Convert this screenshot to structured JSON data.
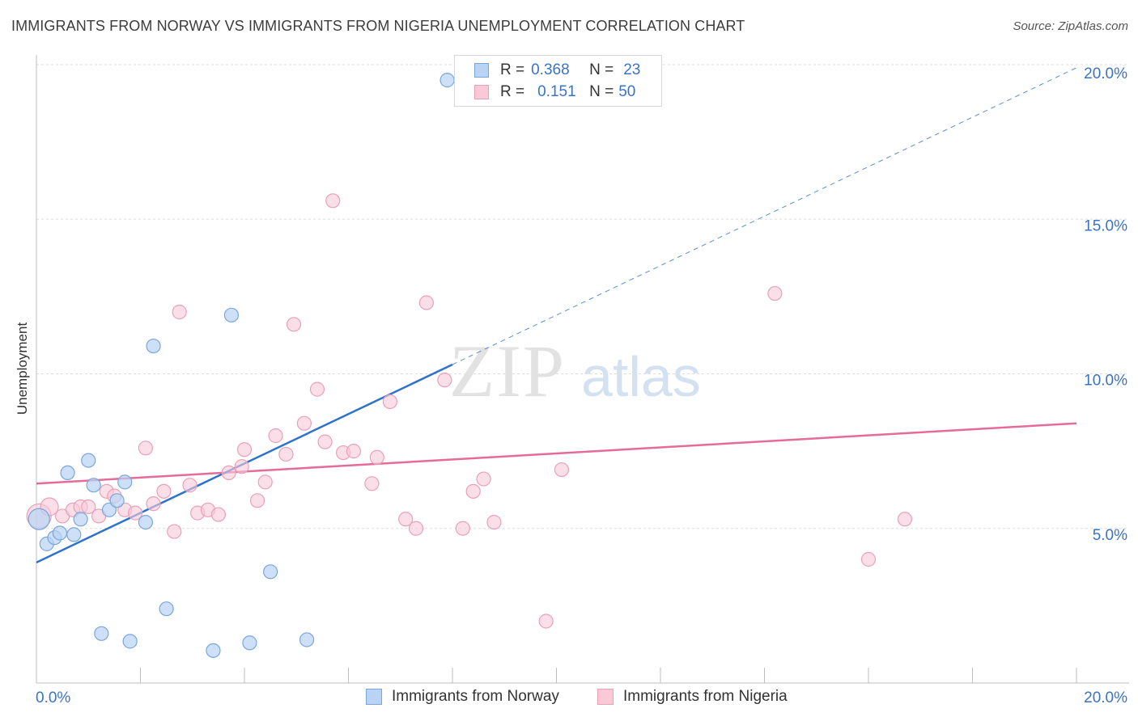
{
  "header": {
    "title": "IMMIGRANTS FROM NORWAY VS IMMIGRANTS FROM NIGERIA UNEMPLOYMENT CORRELATION CHART",
    "source": "Source: ZipAtlas.com"
  },
  "legend": {
    "norway": {
      "r_label": "R =",
      "r_value": "0.368",
      "n_label": "N =",
      "n_value": "23"
    },
    "nigeria": {
      "r_label": "R =",
      "r_value": "0.151",
      "n_label": "N =",
      "n_value": "50"
    }
  },
  "watermark": {
    "zip": "ZIP",
    "atlas": "atlas"
  },
  "colors": {
    "norway_fill": "#b8d3f4",
    "norway_stroke": "#7aa6de",
    "norway_line": "#2f72cc",
    "nigeria_fill": "#f9c9d8",
    "nigeria_stroke": "#eba0b8",
    "nigeria_line": "#e56b98",
    "axis_text": "#3b73c4",
    "grid": "#dddddd"
  },
  "chart_data": {
    "type": "scatter",
    "title": "IMMIGRANTS FROM NORWAY VS IMMIGRANTS FROM NIGERIA UNEMPLOYMENT CORRELATION CHART",
    "xlabel": "",
    "ylabel": "Unemployment",
    "xlim": [
      0,
      20
    ],
    "ylim": [
      0,
      20
    ],
    "x_tick_labels": [
      "0.0%",
      "20.0%"
    ],
    "y_ticks": [
      5,
      10,
      15,
      20
    ],
    "y_tick_labels": [
      "5.0%",
      "10.0%",
      "15.0%",
      "20.0%"
    ],
    "grid": true,
    "legend_position": "top-center",
    "series": [
      {
        "name": "Immigrants from Norway",
        "r": 0.368,
        "n": 23,
        "points": [
          [
            0.05,
            5.3
          ],
          [
            0.2,
            4.5
          ],
          [
            0.35,
            4.7
          ],
          [
            0.45,
            4.85
          ],
          [
            0.6,
            6.8
          ],
          [
            0.72,
            4.8
          ],
          [
            0.85,
            5.3
          ],
          [
            1.0,
            7.2
          ],
          [
            1.1,
            6.4
          ],
          [
            1.25,
            1.6
          ],
          [
            1.4,
            5.6
          ],
          [
            1.55,
            5.9
          ],
          [
            1.7,
            6.5
          ],
          [
            1.8,
            1.35
          ],
          [
            2.1,
            5.2
          ],
          [
            2.25,
            10.9
          ],
          [
            2.5,
            2.4
          ],
          [
            3.4,
            1.05
          ],
          [
            3.75,
            11.9
          ],
          [
            4.1,
            1.3
          ],
          [
            4.5,
            3.6
          ],
          [
            5.2,
            1.4
          ],
          [
            7.9,
            19.5
          ]
        ],
        "trend": {
          "x": [
            0.0,
            8.0
          ],
          "y": [
            3.9,
            10.3
          ]
        },
        "trend_extension": {
          "x": [
            8.0,
            20.0
          ],
          "y": [
            10.3,
            19.9
          ]
        }
      },
      {
        "name": "Immigrants from Nigeria",
        "r": 0.151,
        "n": 50,
        "points": [
          [
            0.05,
            5.4
          ],
          [
            0.25,
            5.7
          ],
          [
            0.5,
            5.4
          ],
          [
            0.7,
            5.6
          ],
          [
            0.85,
            5.7
          ],
          [
            1.0,
            5.7
          ],
          [
            1.2,
            5.4
          ],
          [
            1.35,
            6.2
          ],
          [
            1.5,
            6.05
          ],
          [
            1.7,
            5.6
          ],
          [
            1.9,
            5.5
          ],
          [
            2.1,
            7.6
          ],
          [
            2.25,
            5.8
          ],
          [
            2.45,
            6.2
          ],
          [
            2.65,
            4.9
          ],
          [
            2.75,
            12.0
          ],
          [
            2.95,
            6.4
          ],
          [
            3.1,
            5.5
          ],
          [
            3.3,
            5.6
          ],
          [
            3.5,
            5.45
          ],
          [
            3.7,
            6.8
          ],
          [
            3.95,
            7.0
          ],
          [
            4.0,
            7.55
          ],
          [
            4.25,
            5.9
          ],
          [
            4.4,
            6.5
          ],
          [
            4.6,
            8.0
          ],
          [
            4.8,
            7.4
          ],
          [
            4.95,
            11.6
          ],
          [
            5.15,
            8.4
          ],
          [
            5.4,
            9.5
          ],
          [
            5.55,
            7.8
          ],
          [
            5.7,
            15.6
          ],
          [
            5.9,
            7.45
          ],
          [
            6.1,
            7.5
          ],
          [
            6.45,
            6.45
          ],
          [
            6.55,
            7.3
          ],
          [
            6.8,
            9.1
          ],
          [
            7.1,
            5.3
          ],
          [
            7.3,
            5.0
          ],
          [
            7.5,
            12.3
          ],
          [
            7.85,
            9.8
          ],
          [
            8.2,
            5.0
          ],
          [
            8.4,
            6.2
          ],
          [
            8.6,
            6.6
          ],
          [
            8.8,
            5.2
          ],
          [
            9.8,
            2.0
          ],
          [
            10.1,
            6.9
          ],
          [
            14.2,
            12.6
          ],
          [
            16.0,
            4.0
          ],
          [
            16.7,
            5.3
          ]
        ],
        "trend": {
          "x": [
            0.0,
            20.0
          ],
          "y": [
            6.45,
            8.4
          ]
        }
      }
    ]
  },
  "bottom_legend": {
    "norway_label": "Immigrants from Norway",
    "nigeria_label": "Immigrants from Nigeria"
  }
}
